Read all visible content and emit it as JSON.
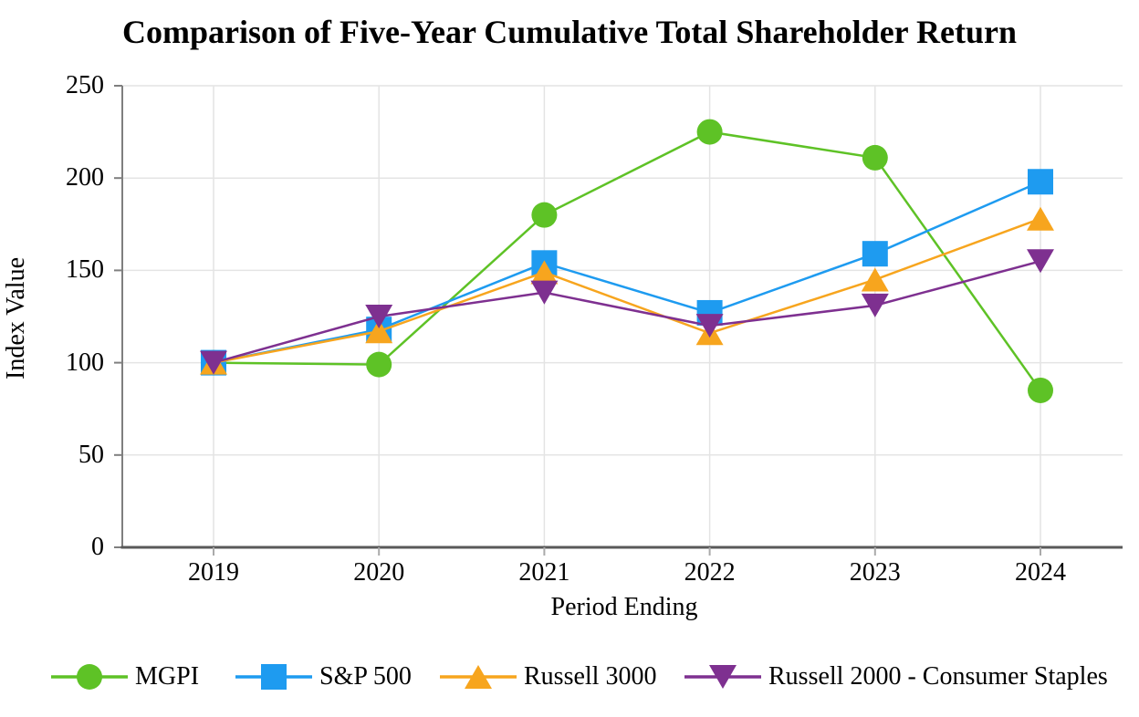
{
  "chart_data": {
    "type": "line",
    "title": "Comparison of Five-Year Cumulative Total Shareholder Return",
    "xlabel": "Period Ending",
    "ylabel": "Index Value",
    "categories": [
      "2019",
      "2020",
      "2021",
      "2022",
      "2023",
      "2024"
    ],
    "y_tick_labels": [
      "250",
      "200",
      "150",
      "100",
      "50",
      "0"
    ],
    "ylim": [
      0,
      250
    ],
    "grid": true,
    "legend_position": "bottom",
    "series": [
      {
        "name": "MGPI",
        "marker": "circle",
        "color": "#5EC226",
        "values": [
          100,
          99,
          180,
          225,
          211,
          85
        ]
      },
      {
        "name": "S&P 500",
        "marker": "square",
        "color": "#1E9BF0",
        "values": [
          100,
          118,
          154,
          127,
          159,
          198
        ]
      },
      {
        "name": "Russell 3000",
        "marker": "triangle-up",
        "color": "#F7A51E",
        "values": [
          100,
          117,
          149,
          116,
          145,
          178
        ]
      },
      {
        "name": "Russell 2000 - Consumer Staples",
        "marker": "triangle-down",
        "color": "#7E3090",
        "values": [
          100,
          125,
          138,
          120,
          131,
          155
        ]
      }
    ]
  },
  "style_colors": {
    "gridline": "#E4E4E4",
    "y_axis": "#7F7F7F",
    "x_axis": "#595959",
    "x_tick": "#AAAAAA"
  }
}
